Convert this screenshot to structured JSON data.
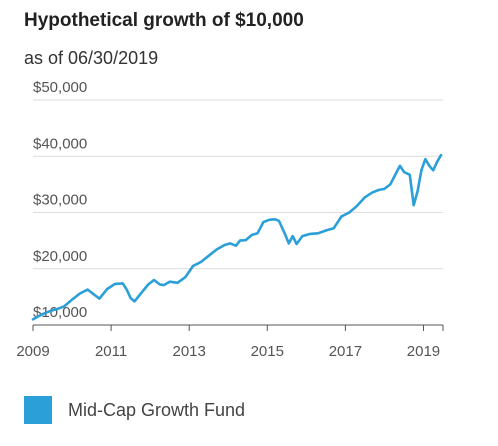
{
  "header": {
    "title": "Hypothetical growth of $10,000",
    "subtitle": "as of 06/30/2019"
  },
  "colors": {
    "series": "#2b9fd8",
    "grid": "#dddddd",
    "axis": "#555555",
    "tick_label": "#555555"
  },
  "chart_data": {
    "type": "line",
    "title": "Hypothetical growth of $10,000",
    "subtitle": "as of 06/30/2019",
    "xlabel": "",
    "ylabel": "",
    "xlim": [
      2009.0,
      2019.5
    ],
    "ylim": [
      10000,
      50000
    ],
    "x_ticks": [
      2009,
      2011,
      2013,
      2015,
      2017,
      2019
    ],
    "x_tick_labels": [
      "2009",
      "2011",
      "2013",
      "2015",
      "2017",
      "2019"
    ],
    "y_ticks": [
      10000,
      20000,
      30000,
      40000,
      50000
    ],
    "y_tick_labels": [
      "$10,000",
      "$20,000",
      "$30,000",
      "$40,000",
      "$50,000"
    ],
    "grid": "horizontal",
    "legend_position": "bottom-left",
    "series": [
      {
        "name": "Mid-Cap Growth Fund",
        "x": [
          2009.0,
          2009.15,
          2009.3,
          2009.45,
          2009.6,
          2009.8,
          2010.0,
          2010.2,
          2010.4,
          2010.55,
          2010.7,
          2010.9,
          2011.1,
          2011.3,
          2011.4,
          2011.5,
          2011.6,
          2011.75,
          2011.95,
          2012.1,
          2012.25,
          2012.35,
          2012.5,
          2012.7,
          2012.9,
          2013.1,
          2013.3,
          2013.5,
          2013.7,
          2013.9,
          2014.05,
          2014.2,
          2014.3,
          2014.45,
          2014.6,
          2014.75,
          2014.9,
          2015.05,
          2015.2,
          2015.3,
          2015.45,
          2015.55,
          2015.65,
          2015.75,
          2015.9,
          2016.1,
          2016.3,
          2016.5,
          2016.7,
          2016.9,
          2017.1,
          2017.3,
          2017.5,
          2017.7,
          2017.85,
          2018.0,
          2018.15,
          2018.3,
          2018.4,
          2018.5,
          2018.65,
          2018.75,
          2018.85,
          2018.95,
          2019.05,
          2019.15,
          2019.25,
          2019.35,
          2019.45
        ],
        "values": [
          11000,
          11600,
          12100,
          12500,
          12800,
          13300,
          14500,
          15600,
          16300,
          15500,
          14700,
          16400,
          17300,
          17400,
          16300,
          14800,
          14200,
          15500,
          17200,
          18000,
          17200,
          17100,
          17700,
          17500,
          18500,
          20500,
          21200,
          22300,
          23400,
          24200,
          24500,
          24100,
          25000,
          25100,
          26000,
          26300,
          28300,
          28700,
          28800,
          28500,
          26200,
          24500,
          25800,
          24400,
          25800,
          26200,
          26300,
          26800,
          27200,
          29300,
          30000,
          31200,
          32700,
          33600,
          34000,
          34200,
          35000,
          37000,
          38300,
          37200,
          36700,
          31300,
          33800,
          37600,
          39500,
          38300,
          37500,
          39000,
          40200
        ]
      }
    ]
  }
}
